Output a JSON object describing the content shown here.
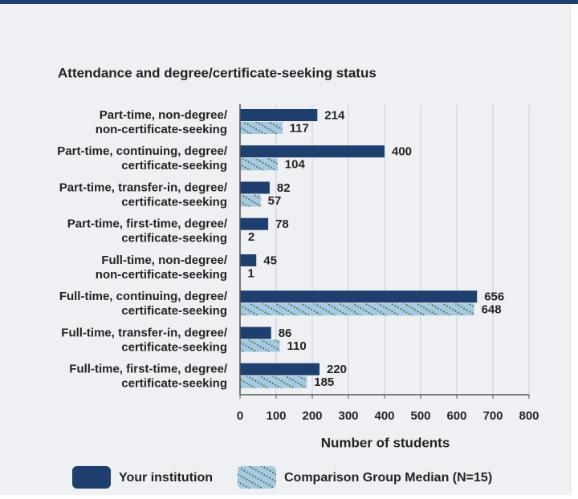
{
  "chart_data": {
    "type": "bar",
    "orientation": "horizontal",
    "title": "Attendance and degree/certificate-seeking status",
    "x_label": "Number of students",
    "categories": [
      [
        "Part-time, non-degree/",
        "non-certificate-seeking"
      ],
      [
        "Part-time, continuing, degree/",
        "certificate-seeking"
      ],
      [
        "Part-time, transfer-in, degree/",
        "certificate-seeking"
      ],
      [
        "Part-time, first-time, degree/",
        "certificate-seeking"
      ],
      [
        "Full-time, non-degree/",
        "non-certificate-seeking"
      ],
      [
        "Full-time, continuing, degree/",
        "certificate-seeking"
      ],
      [
        "Full-time, transfer-in, degree/",
        "certificate-seeking"
      ],
      [
        "Full-time, first-time, degree/",
        "certificate-seeking"
      ]
    ],
    "series": [
      {
        "name": "Your institution",
        "color": "#1f3f6e",
        "values": [
          214,
          400,
          82,
          78,
          45,
          656,
          86,
          220
        ]
      },
      {
        "name": "Comparison Group Median (N=15)",
        "color": "#a9c7e7",
        "hatch": "#4a8a3a",
        "values": [
          117,
          104,
          57,
          2,
          1,
          648,
          110,
          185
        ]
      }
    ],
    "xlim": [
      0,
      800
    ],
    "xticks": [
      0,
      100,
      200,
      300,
      400,
      500,
      600,
      700,
      800
    ],
    "grid": true
  }
}
